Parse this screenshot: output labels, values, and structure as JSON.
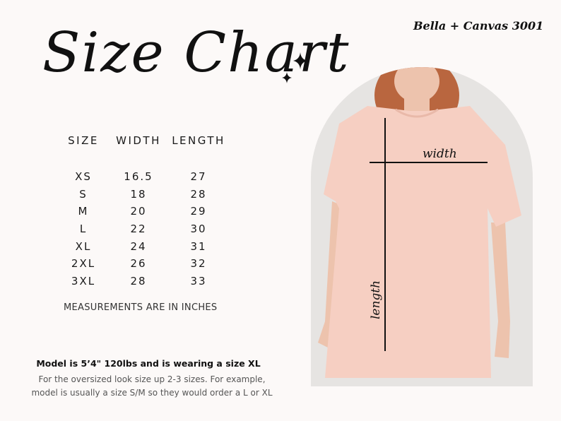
{
  "title": "Size Chart",
  "brand": "Bella + Canvas 3001",
  "table": {
    "headers": [
      "SIZE",
      "WIDTH",
      "LENGTH"
    ],
    "rows": [
      [
        "XS",
        "16.5",
        "27"
      ],
      [
        "S",
        "18",
        "28"
      ],
      [
        "M",
        "20",
        "29"
      ],
      [
        "L",
        "22",
        "30"
      ],
      [
        "XL",
        "24",
        "31"
      ],
      [
        "2XL",
        "26",
        "32"
      ],
      [
        "3XL",
        "28",
        "33"
      ]
    ]
  },
  "unit_note": "MEASUREMENTS ARE IN INCHES",
  "model_note": "Model is 5’4\" 120lbs and is wearing a size XL",
  "fit_note_line1": "For the oversized look size up 2-3 sizes. For example,",
  "fit_note_line2": "model is usually a size S/M so they would order a L or XL",
  "photo_labels": {
    "width": "width",
    "length": "length"
  },
  "colors": {
    "background": "#fcf9f8",
    "shirt": "#f6cfc2",
    "arch": "#e6e4e2"
  }
}
